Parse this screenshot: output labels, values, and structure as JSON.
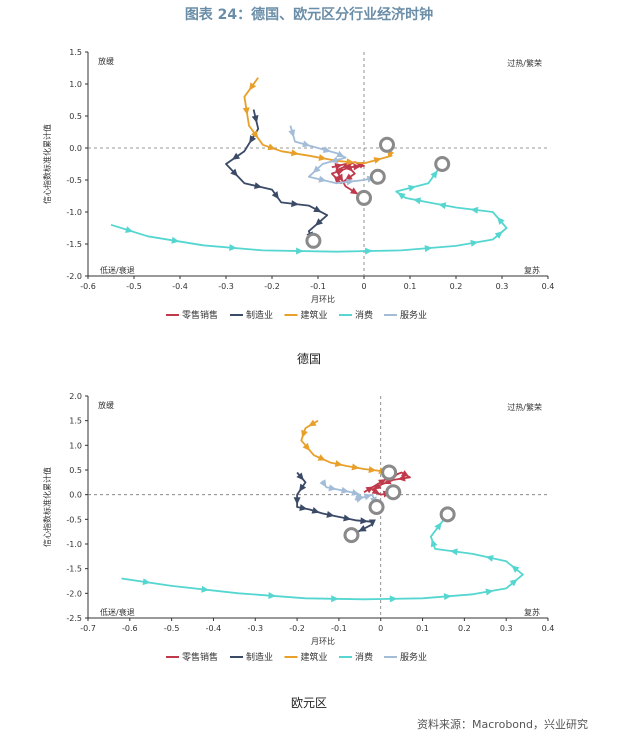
{
  "figure_title": "图表 24：德国、欧元区分行业经济时钟",
  "source": "资料来源：Macrobond，兴业研究",
  "colors": {
    "retail": "#c0394b",
    "manufacturing": "#3b4a66",
    "construction": "#e8a02a",
    "consumption": "#55d6d0",
    "services": "#a3bcd8",
    "marker": "#8a8a8a"
  },
  "chart_data": [
    {
      "type": "line",
      "caption": "德国",
      "title": "",
      "xlabel": "月环比",
      "ylabel": "信心指数标准化累计值",
      "xlim": [
        -0.6,
        0.4
      ],
      "ylim": [
        -2.0,
        1.5
      ],
      "xticks": [
        -0.6,
        -0.5,
        -0.4,
        -0.3,
        -0.2,
        -0.1,
        0,
        0.1,
        0.2,
        0.3,
        0.4
      ],
      "yticks": [
        1.5,
        1.0,
        0.5,
        0.0,
        -0.5,
        -1.0,
        -1.5,
        -2.0
      ],
      "xtick_labels": [
        "-0.6",
        "-0.5",
        "-0.4",
        "-0.3",
        "-0.2",
        "-0.1",
        "0",
        "0.1",
        "0.2",
        "0.3",
        "0.4"
      ],
      "ytick_labels": [
        "1.5",
        "1.0",
        "0.5",
        "0.0",
        "-0.5",
        "-1.0",
        "-1.5",
        "-2.0"
      ],
      "quadrant_labels": {
        "top_left": "放缓",
        "top_right": "过热/繁荣",
        "bottom_left": "低迷/衰退",
        "bottom_right": "复苏"
      },
      "legend": [
        "零售销售",
        "制造业",
        "建筑业",
        "消费",
        "服务业"
      ],
      "series": [
        {
          "name": "零售销售",
          "key": "retail",
          "x": [
            -0.07,
            -0.04,
            -0.02,
            -0.05,
            -0.07,
            -0.03,
            0.0,
            -0.02,
            -0.06,
            -0.04,
            0.0
          ],
          "y": [
            -0.3,
            -0.25,
            -0.4,
            -0.55,
            -0.4,
            -0.3,
            -0.28,
            -0.22,
            -0.35,
            -0.6,
            -0.78
          ],
          "end": [
            0.0,
            -0.78
          ]
        },
        {
          "name": "制造业",
          "key": "manufacturing",
          "x": [
            -0.24,
            -0.23,
            -0.26,
            -0.3,
            -0.26,
            -0.2,
            -0.18,
            -0.12,
            -0.08,
            -0.12,
            -0.11
          ],
          "y": [
            0.6,
            0.3,
            -0.05,
            -0.25,
            -0.55,
            -0.65,
            -0.85,
            -0.9,
            -1.05,
            -1.3,
            -1.45
          ],
          "end": [
            -0.11,
            -1.45
          ]
        },
        {
          "name": "建筑业",
          "key": "construction",
          "x": [
            -0.23,
            -0.26,
            -0.25,
            -0.22,
            -0.18,
            -0.12,
            -0.06,
            0.0,
            0.06,
            0.05,
            0.05
          ],
          "y": [
            1.1,
            0.8,
            0.35,
            0.05,
            -0.05,
            -0.12,
            -0.2,
            -0.24,
            -0.12,
            0.0,
            0.05
          ],
          "end": [
            0.05,
            0.05
          ]
        },
        {
          "name": "消费",
          "key": "consumption",
          "x": [
            -0.55,
            -0.47,
            -0.35,
            -0.22,
            -0.06,
            0.08,
            0.2,
            0.28,
            0.31,
            0.28,
            0.2,
            0.14,
            0.09,
            0.07,
            0.14,
            0.17
          ],
          "y": [
            -1.2,
            -1.38,
            -1.52,
            -1.6,
            -1.62,
            -1.6,
            -1.53,
            -1.43,
            -1.25,
            -1.0,
            -0.93,
            -0.85,
            -0.78,
            -0.68,
            -0.55,
            -0.25
          ],
          "end": [
            0.17,
            -0.25
          ]
        },
        {
          "name": "服务业",
          "key": "services",
          "x": [
            -0.16,
            -0.15,
            -0.1,
            -0.06,
            -0.04,
            -0.09,
            -0.12,
            -0.06,
            0.0,
            0.03
          ],
          "y": [
            0.35,
            0.1,
            0.0,
            -0.08,
            -0.15,
            -0.25,
            -0.45,
            -0.55,
            -0.5,
            -0.45
          ],
          "end": [
            0.03,
            -0.45
          ]
        }
      ]
    },
    {
      "type": "line",
      "caption": "欧元区",
      "title": "",
      "xlabel": "月环比",
      "ylabel": "信心指数标准化累计值",
      "xlim": [
        -0.7,
        0.4
      ],
      "ylim": [
        -2.5,
        2.0
      ],
      "xticks": [
        -0.7,
        -0.6,
        -0.5,
        -0.4,
        -0.3,
        -0.2,
        -0.1,
        0,
        0.1,
        0.2,
        0.3,
        0.4
      ],
      "yticks": [
        2.0,
        1.5,
        1.0,
        0.5,
        0.0,
        -0.5,
        -1.0,
        -1.5,
        -2.0,
        -2.5
      ],
      "xtick_labels": [
        "-0.7",
        "-0.6",
        "-0.5",
        "-0.4",
        "-0.3",
        "-0.2",
        "-0.1",
        "0",
        "0.1",
        "0.2",
        "0.3",
        "0.4"
      ],
      "ytick_labels": [
        "2.0",
        "1.5",
        "1.0",
        "0.5",
        "0.0",
        "-0.5",
        "-1.0",
        "-1.5",
        "-2.0",
        "-2.5"
      ],
      "quadrant_labels": {
        "top_left": "放缓",
        "top_right": "过热/繁荣",
        "bottom_left": "低迷/衰退",
        "bottom_right": "复苏"
      },
      "legend": [
        "零售销售",
        "制造业",
        "建筑业",
        "消费",
        "服务业"
      ],
      "series": [
        {
          "name": "零售销售",
          "key": "retail",
          "x": [
            -0.04,
            -0.01,
            0.02,
            0.05,
            0.07,
            0.03,
            0.0,
            -0.02,
            0.0,
            0.03
          ],
          "y": [
            0.05,
            0.2,
            0.35,
            0.45,
            0.35,
            0.3,
            0.2,
            0.1,
            0.0,
            0.05
          ],
          "end": [
            0.03,
            0.05
          ]
        },
        {
          "name": "制造业",
          "key": "manufacturing",
          "x": [
            -0.2,
            -0.18,
            -0.2,
            -0.2,
            -0.17,
            -0.14,
            -0.1,
            -0.06,
            -0.02,
            -0.02,
            -0.07
          ],
          "y": [
            0.45,
            0.25,
            0.0,
            -0.25,
            -0.3,
            -0.38,
            -0.45,
            -0.52,
            -0.55,
            -0.6,
            -0.82
          ],
          "end": [
            -0.07,
            -0.82
          ]
        },
        {
          "name": "建筑业",
          "key": "construction",
          "x": [
            -0.15,
            -0.18,
            -0.19,
            -0.16,
            -0.12,
            -0.08,
            -0.04,
            0.0,
            0.01,
            0.02
          ],
          "y": [
            1.5,
            1.35,
            1.1,
            0.8,
            0.65,
            0.58,
            0.52,
            0.48,
            0.45,
            0.45
          ],
          "end": [
            0.02,
            0.45
          ]
        },
        {
          "name": "消费",
          "key": "consumption",
          "x": [
            -0.62,
            -0.5,
            -0.34,
            -0.18,
            -0.04,
            0.1,
            0.22,
            0.3,
            0.34,
            0.3,
            0.22,
            0.13,
            0.12,
            0.16
          ],
          "y": [
            -1.7,
            -1.85,
            -2.0,
            -2.1,
            -2.12,
            -2.1,
            -2.02,
            -1.9,
            -1.62,
            -1.35,
            -1.2,
            -1.1,
            -0.85,
            -0.4
          ],
          "end": [
            0.16,
            -0.4
          ]
        },
        {
          "name": "服务业",
          "key": "services",
          "x": [
            -0.14,
            -0.13,
            -0.1,
            -0.07,
            -0.05,
            -0.06,
            -0.04,
            -0.02,
            -0.01
          ],
          "y": [
            0.28,
            0.15,
            0.1,
            0.05,
            0.0,
            -0.1,
            -0.05,
            0.0,
            -0.25
          ],
          "end": [
            -0.01,
            -0.25
          ]
        }
      ]
    }
  ]
}
